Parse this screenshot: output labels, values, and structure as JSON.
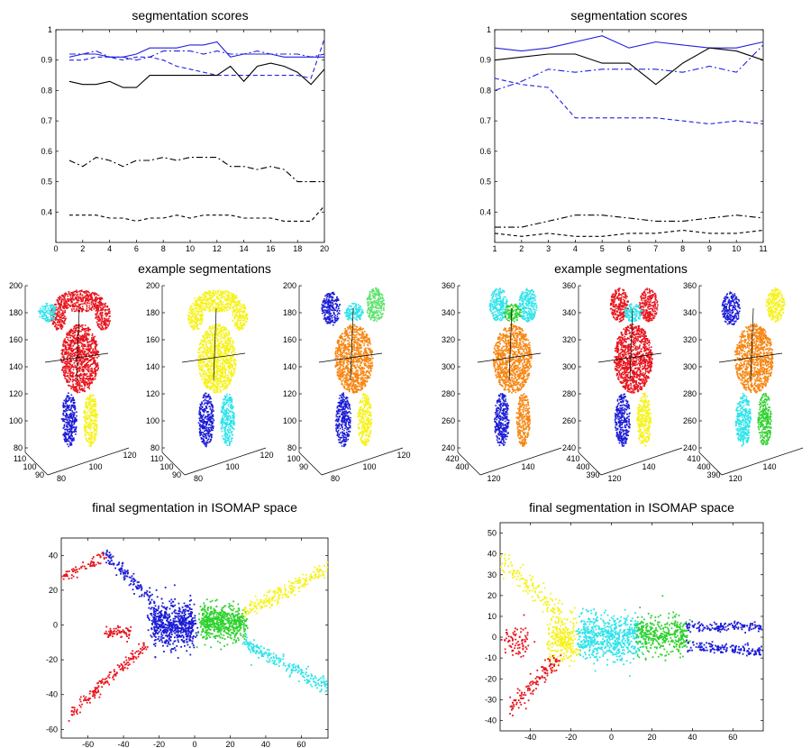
{
  "figure": {
    "colors": {
      "red": "#e8131c",
      "blue": "#1a1ad6",
      "cyan": "#2ee3ea",
      "yellow": "#f6f217",
      "green": "#2fd12e",
      "orange": "#f7850f",
      "darkred": "#d03a0a",
      "lightgreen": "#5ee36d",
      "lineblue": "#2020e0",
      "black": "#000000",
      "axis": "#000000"
    }
  },
  "chart_data": [
    {
      "id": "scores-left",
      "type": "line",
      "title": "segmentation scores",
      "xlim": [
        0,
        20
      ],
      "ylim": [
        0.3,
        1.0
      ],
      "xticks": [
        0,
        2,
        4,
        6,
        8,
        10,
        12,
        14,
        16,
        18,
        20
      ],
      "yticks": [
        0.4,
        0.5,
        0.6,
        0.7,
        0.8,
        0.9,
        1
      ],
      "yticklabels": [
        "0.4",
        "0.5",
        "0.6",
        "0.7",
        "0.8",
        "0.9",
        "1"
      ],
      "x": [
        1,
        2,
        3,
        4,
        5,
        6,
        7,
        8,
        9,
        10,
        11,
        12,
        13,
        14,
        15,
        16,
        17,
        18,
        19,
        20
      ],
      "series": [
        {
          "name": "blue-solid",
          "color": "lineblue",
          "dash": "",
          "values": [
            0.91,
            0.92,
            0.92,
            0.91,
            0.91,
            0.92,
            0.94,
            0.94,
            0.94,
            0.95,
            0.95,
            0.96,
            0.91,
            0.92,
            0.92,
            0.92,
            0.91,
            0.91,
            0.91,
            0.91
          ]
        },
        {
          "name": "blue-dashdot",
          "color": "lineblue",
          "dash": "7 3 2 3",
          "values": [
            0.92,
            0.92,
            0.93,
            0.91,
            0.91,
            0.9,
            0.91,
            0.93,
            0.93,
            0.93,
            0.92,
            0.93,
            0.92,
            0.92,
            0.93,
            0.92,
            0.92,
            0.92,
            0.91,
            0.92
          ]
        },
        {
          "name": "blue-dashed",
          "color": "lineblue",
          "dash": "5 3",
          "values": [
            0.9,
            0.9,
            0.91,
            0.91,
            0.9,
            0.91,
            0.91,
            0.9,
            0.88,
            0.87,
            0.86,
            0.85,
            0.85,
            0.85,
            0.85,
            0.85,
            0.85,
            0.85,
            0.84,
            0.97
          ]
        },
        {
          "name": "black-solid",
          "color": "black",
          "dash": "",
          "values": [
            0.83,
            0.82,
            0.82,
            0.83,
            0.81,
            0.81,
            0.85,
            0.85,
            0.85,
            0.85,
            0.85,
            0.85,
            0.88,
            0.83,
            0.88,
            0.89,
            0.88,
            0.86,
            0.82,
            0.87
          ]
        },
        {
          "name": "black-dashdot",
          "color": "black",
          "dash": "7 3 2 3",
          "values": [
            0.57,
            0.55,
            0.58,
            0.57,
            0.55,
            0.57,
            0.57,
            0.58,
            0.57,
            0.58,
            0.58,
            0.58,
            0.55,
            0.55,
            0.54,
            0.55,
            0.54,
            0.5,
            0.5,
            0.5
          ]
        },
        {
          "name": "black-dashed",
          "color": "black",
          "dash": "4 3",
          "values": [
            0.39,
            0.39,
            0.39,
            0.38,
            0.38,
            0.37,
            0.38,
            0.38,
            0.39,
            0.38,
            0.39,
            0.39,
            0.39,
            0.38,
            0.38,
            0.38,
            0.37,
            0.37,
            0.37,
            0.42
          ]
        }
      ]
    },
    {
      "id": "scores-right",
      "type": "line",
      "title": "segmentation scores",
      "xlim": [
        1,
        11
      ],
      "ylim": [
        0.3,
        1.0
      ],
      "xticks": [
        1,
        2,
        3,
        4,
        5,
        6,
        7,
        8,
        9,
        10,
        11
      ],
      "yticks": [
        0.4,
        0.5,
        0.6,
        0.7,
        0.8,
        0.9,
        1
      ],
      "yticklabels": [
        "0.4",
        "0.5",
        "0.6",
        "0.7",
        "0.8",
        "0.9",
        "1"
      ],
      "x": [
        1,
        2,
        3,
        4,
        5,
        6,
        7,
        8,
        9,
        10,
        11
      ],
      "series": [
        {
          "name": "blue-solid",
          "color": "lineblue",
          "dash": "",
          "values": [
            0.94,
            0.93,
            0.94,
            0.96,
            0.98,
            0.94,
            0.96,
            0.95,
            0.94,
            0.94,
            0.96
          ]
        },
        {
          "name": "black-solid",
          "color": "black",
          "dash": "",
          "values": [
            0.9,
            0.91,
            0.92,
            0.92,
            0.89,
            0.89,
            0.82,
            0.89,
            0.94,
            0.93,
            0.9
          ]
        },
        {
          "name": "blue-dashdot",
          "color": "lineblue",
          "dash": "7 3 2 3",
          "values": [
            0.8,
            0.83,
            0.87,
            0.86,
            0.87,
            0.87,
            0.87,
            0.86,
            0.88,
            0.86,
            0.95
          ]
        },
        {
          "name": "blue-dashed",
          "color": "lineblue",
          "dash": "5 3",
          "values": [
            0.84,
            0.82,
            0.81,
            0.71,
            0.71,
            0.71,
            0.71,
            0.7,
            0.69,
            0.7,
            0.69
          ]
        },
        {
          "name": "black-dashdot",
          "color": "black",
          "dash": "7 3 2 3",
          "values": [
            0.35,
            0.35,
            0.37,
            0.39,
            0.39,
            0.38,
            0.37,
            0.37,
            0.38,
            0.39,
            0.38
          ]
        },
        {
          "name": "black-dashed",
          "color": "black",
          "dash": "4 3",
          "values": [
            0.33,
            0.32,
            0.33,
            0.32,
            0.32,
            0.33,
            0.33,
            0.34,
            0.33,
            0.33,
            0.34
          ]
        }
      ]
    },
    {
      "id": "example-left",
      "type": "scatter",
      "title": "example segmentations",
      "zticks": [
        80,
        100,
        120,
        140,
        160,
        180,
        200
      ],
      "bodies": [
        {
          "name": "body-1",
          "zlabels": [
            "80",
            "100",
            "120",
            "140",
            "160",
            "180",
            "200"
          ],
          "base_labels_a": [
            "110",
            "100",
            "90"
          ],
          "base_labels_b": [
            "80",
            "100",
            "120"
          ],
          "parts": [
            {
              "part": "torso",
              "color": "red"
            },
            {
              "part": "head-arms",
              "color": "red"
            },
            {
              "part": "left-hand",
              "color": "cyan"
            },
            {
              "part": "left-leg",
              "color": "blue"
            },
            {
              "part": "right-leg",
              "color": "yellow"
            }
          ]
        },
        {
          "name": "body-2",
          "zlabels": [
            "80",
            "100",
            "120",
            "140",
            "160",
            "180",
            "200"
          ],
          "base_labels_a": [
            "110",
            "100",
            "90"
          ],
          "base_labels_b": [
            "80",
            "100",
            "120"
          ],
          "parts": [
            {
              "part": "torso",
              "color": "yellow"
            },
            {
              "part": "head-arms",
              "color": "yellow"
            },
            {
              "part": "left-leg",
              "color": "blue"
            },
            {
              "part": "right-leg",
              "color": "cyan"
            }
          ]
        },
        {
          "name": "body-3",
          "zlabels": [
            "80",
            "100",
            "120",
            "140",
            "160",
            "180",
            "200"
          ],
          "base_labels_a": [
            "100",
            "90"
          ],
          "base_labels_b": [
            "80",
            "100",
            "120"
          ],
          "parts": [
            {
              "part": "torso",
              "color": "orange"
            },
            {
              "part": "left-arm",
              "color": "blue"
            },
            {
              "part": "head",
              "color": "cyan"
            },
            {
              "part": "right-arm",
              "color": "lightgreen"
            },
            {
              "part": "left-leg",
              "color": "blue"
            },
            {
              "part": "right-leg",
              "color": "yellow"
            }
          ]
        }
      ]
    },
    {
      "id": "example-right",
      "type": "scatter",
      "title": "example segmentations",
      "bodies": [
        {
          "name": "body-4",
          "zlabels": [
            "240",
            "260",
            "280",
            "300",
            "320",
            "340",
            "360"
          ],
          "base_labels_a": [
            "420",
            "400"
          ],
          "base_labels_b": [
            "120",
            "140"
          ],
          "parts": [
            {
              "part": "torso",
              "color": "orange"
            },
            {
              "part": "arms",
              "color": "cyan"
            },
            {
              "part": "head",
              "color": "green"
            },
            {
              "part": "left-leg",
              "color": "blue"
            },
            {
              "part": "right-leg",
              "color": "orange"
            }
          ]
        },
        {
          "name": "body-5",
          "zlabels": [
            "240",
            "260",
            "280",
            "300",
            "320",
            "340",
            "360"
          ],
          "base_labels_a": [
            "410",
            "400",
            "390"
          ],
          "base_labels_b": [
            "120",
            "140"
          ],
          "parts": [
            {
              "part": "torso",
              "color": "red"
            },
            {
              "part": "arms",
              "color": "red"
            },
            {
              "part": "head",
              "color": "cyan"
            },
            {
              "part": "left-leg",
              "color": "blue"
            },
            {
              "part": "right-leg",
              "color": "yellow"
            }
          ]
        },
        {
          "name": "body-6",
          "zlabels": [
            "240",
            "260",
            "280",
            "300",
            "320",
            "340",
            "360"
          ],
          "base_labels_a": [
            "410",
            "400",
            "390"
          ],
          "base_labels_b": [
            "120",
            "140"
          ],
          "parts": [
            {
              "part": "torso",
              "color": "orange"
            },
            {
              "part": "left-arm",
              "color": "blue"
            },
            {
              "part": "right-arm",
              "color": "yellow"
            },
            {
              "part": "left-leg",
              "color": "cyan"
            },
            {
              "part": "right-leg",
              "color": "green"
            }
          ]
        }
      ]
    },
    {
      "id": "isomap-left",
      "type": "scatter",
      "title": "final segmentation in ISOMAP space",
      "xlim": [
        -75,
        75
      ],
      "ylim": [
        -65,
        50
      ],
      "xticks": [
        -60,
        -40,
        -20,
        0,
        20,
        40,
        60
      ],
      "yticks": [
        -60,
        -40,
        -20,
        0,
        20,
        40
      ],
      "clusters": [
        {
          "name": "red-upper-arm",
          "color": "red",
          "kind": "line",
          "from": [
            -75,
            27
          ],
          "to": [
            -50,
            40
          ],
          "n": 70,
          "spread": 1.5
        },
        {
          "name": "blue-upper-arm",
          "color": "blue",
          "kind": "line",
          "from": [
            -50,
            41
          ],
          "to": [
            -22,
            12
          ],
          "n": 130,
          "spread": 2.0
        },
        {
          "name": "red-hand",
          "color": "red",
          "kind": "blob",
          "center": [
            -43,
            -4
          ],
          "size": [
            7,
            3
          ],
          "n": 70
        },
        {
          "name": "red-lower-arm",
          "color": "red",
          "kind": "line",
          "from": [
            -70,
            -51
          ],
          "to": [
            -28,
            -12
          ],
          "n": 170,
          "spread": 1.8
        },
        {
          "name": "blue-body",
          "color": "blue",
          "kind": "blob",
          "center": [
            -12,
            0
          ],
          "size": [
            12,
            11
          ],
          "n": 620
        },
        {
          "name": "green-body",
          "color": "green",
          "kind": "blob",
          "center": [
            16,
            1
          ],
          "size": [
            12,
            9
          ],
          "n": 580
        },
        {
          "name": "yellow-arm",
          "color": "yellow",
          "kind": "line",
          "from": [
            28,
            8
          ],
          "to": [
            75,
            32
          ],
          "n": 220,
          "spread": 2.2
        },
        {
          "name": "cyan-arm",
          "color": "cyan",
          "kind": "line",
          "from": [
            28,
            -10
          ],
          "to": [
            75,
            -36
          ],
          "n": 220,
          "spread": 2.2
        }
      ]
    },
    {
      "id": "isomap-right",
      "type": "scatter",
      "title": "final segmentation in ISOMAP space",
      "xlim": [
        -55,
        75
      ],
      "ylim": [
        -45,
        55
      ],
      "xticks": [
        -40,
        -20,
        0,
        20,
        40,
        60
      ],
      "yticks": [
        -40,
        -30,
        -20,
        -10,
        0,
        10,
        20,
        30,
        40,
        50
      ],
      "clusters": [
        {
          "name": "yellow-upper",
          "color": "yellow",
          "kind": "line",
          "from": [
            -55,
            38
          ],
          "to": [
            -25,
            10
          ],
          "n": 140,
          "spread": 2.5
        },
        {
          "name": "yellow-body",
          "color": "yellow",
          "kind": "blob",
          "center": [
            -24,
            -1
          ],
          "size": [
            6,
            10
          ],
          "n": 260
        },
        {
          "name": "red-hand",
          "color": "red",
          "kind": "blob",
          "center": [
            -47,
            -2
          ],
          "size": [
            6,
            6
          ],
          "n": 80
        },
        {
          "name": "red-lower",
          "color": "red",
          "kind": "line",
          "from": [
            -50,
            -34
          ],
          "to": [
            -26,
            -10
          ],
          "n": 130,
          "spread": 2.2
        },
        {
          "name": "cyan-body",
          "color": "cyan",
          "kind": "blob",
          "center": [
            -1,
            0
          ],
          "size": [
            15,
            10
          ],
          "n": 620
        },
        {
          "name": "green-body",
          "color": "green",
          "kind": "blob",
          "center": [
            25,
            1
          ],
          "size": [
            12,
            8
          ],
          "n": 380
        },
        {
          "name": "blue-upper-line",
          "color": "blue",
          "kind": "line",
          "from": [
            37,
            5
          ],
          "to": [
            75,
            5
          ],
          "n": 150,
          "spread": 1.2
        },
        {
          "name": "blue-lower-line",
          "color": "blue",
          "kind": "line",
          "from": [
            37,
            -4
          ],
          "to": [
            75,
            -7
          ],
          "n": 150,
          "spread": 1.2
        }
      ]
    }
  ]
}
